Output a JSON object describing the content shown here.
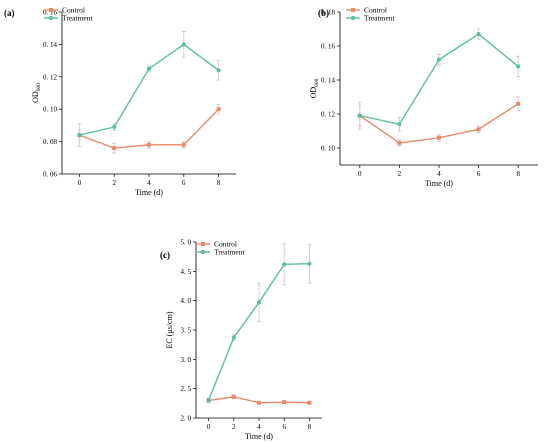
{
  "colors": {
    "control": "#e8896a",
    "treatment": "#5cbf9f",
    "errorbar": "#c8c8c8",
    "axis": "#000000"
  },
  "chart_data": [
    {
      "panel": "(a)",
      "type": "line",
      "xlabel": "Time (d)",
      "ylabel_main": "OD",
      "ylabel_sub": "600",
      "x": [
        0,
        2,
        4,
        6,
        8
      ],
      "xlim": [
        -1,
        9
      ],
      "ylim": [
        0.06,
        0.16
      ],
      "yticks": [
        0.06,
        0.08,
        0.1,
        0.12,
        0.14,
        0.16
      ],
      "ytick_labels": [
        "0. 06",
        "0. 08",
        "0. 10",
        "0. 12",
        "0. 14",
        "0. 16"
      ],
      "xtick_labels": [
        "0",
        "2",
        "4",
        "6",
        "8"
      ],
      "legend_position": "top-left",
      "series": [
        {
          "name": "Control",
          "key": "control",
          "values": [
            0.084,
            0.076,
            0.078,
            0.078,
            0.1
          ],
          "errors": [
            0.003,
            0.003,
            0.002,
            0.002,
            0.003
          ]
        },
        {
          "name": "Treatment",
          "key": "treatment",
          "values": [
            0.084,
            0.089,
            0.125,
            0.14,
            0.124
          ],
          "errors": [
            0.007,
            0.002,
            0.002,
            0.008,
            0.006
          ]
        }
      ]
    },
    {
      "panel": "(b)",
      "type": "line",
      "xlabel": "Time (d)",
      "ylabel_main": "OD",
      "ylabel_sub": "600",
      "x": [
        0,
        2,
        4,
        6,
        8
      ],
      "xlim": [
        -1,
        9
      ],
      "ylim": [
        0.09,
        0.18
      ],
      "yticks": [
        0.1,
        0.12,
        0.14,
        0.16,
        0.18
      ],
      "ytick_labels": [
        "0. 10",
        "0. 12",
        "0. 14",
        "0. 16",
        "0. 18"
      ],
      "xtick_labels": [
        "0",
        "2",
        "4",
        "6",
        "8"
      ],
      "legend_position": "top-left",
      "series": [
        {
          "name": "Control",
          "key": "control",
          "values": [
            0.119,
            0.103,
            0.106,
            0.111,
            0.126
          ],
          "errors": [
            0.008,
            0.002,
            0.002,
            0.002,
            0.004
          ]
        },
        {
          "name": "Treatment",
          "key": "treatment",
          "values": [
            0.119,
            0.114,
            0.152,
            0.167,
            0.148
          ],
          "errors": [
            0.006,
            0.004,
            0.003,
            0.003,
            0.006
          ]
        }
      ]
    },
    {
      "panel": "(c)",
      "type": "line",
      "xlabel": "Time (d)",
      "ylabel_main": "EC (μs/cm)",
      "ylabel_sub": "",
      "x": [
        0,
        2,
        4,
        6,
        8
      ],
      "xlim": [
        -1,
        9
      ],
      "ylim": [
        2.0,
        5.0
      ],
      "yticks": [
        2.0,
        2.5,
        3.0,
        3.5,
        4.0,
        4.5,
        5.0
      ],
      "ytick_labels": [
        "2. 0",
        "2. 5",
        "3. 0",
        "3. 5",
        "4. 0",
        "4. 5",
        "5. 0"
      ],
      "xtick_labels": [
        "0",
        "2",
        "4",
        "6",
        "8"
      ],
      "legend_position": "top-left",
      "series": [
        {
          "name": "Control",
          "key": "control",
          "values": [
            2.3,
            2.36,
            2.26,
            2.27,
            2.26
          ],
          "errors": [
            0.03,
            0.03,
            0.02,
            0.02,
            0.02
          ]
        },
        {
          "name": "Treatment",
          "key": "treatment",
          "values": [
            2.3,
            3.37,
            3.97,
            4.62,
            4.63
          ],
          "errors": [
            0.04,
            0.05,
            0.33,
            0.35,
            0.33
          ]
        }
      ]
    }
  ]
}
